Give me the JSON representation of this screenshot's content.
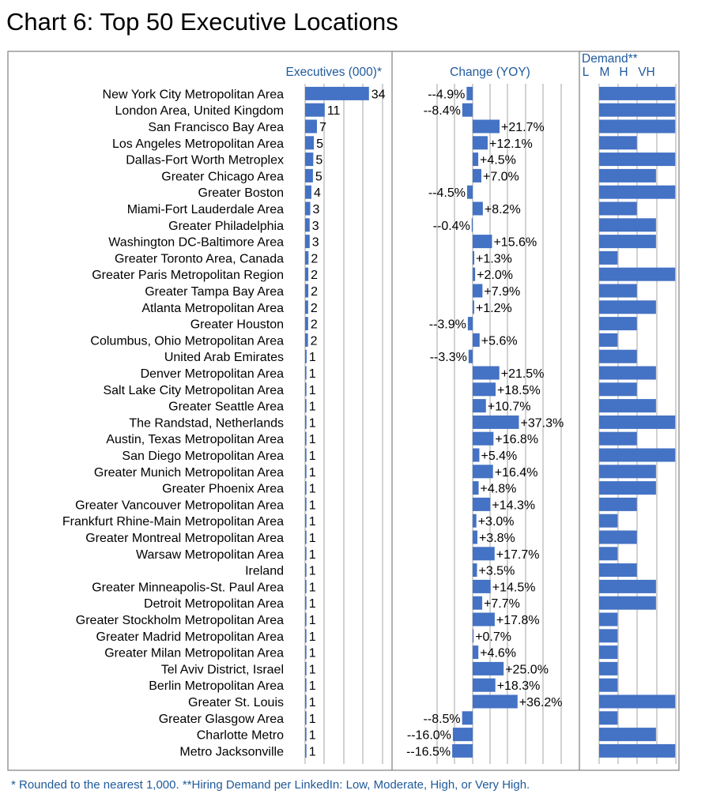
{
  "title": "Chart 6: Top 50 Executive Locations",
  "footnote": "* Rounded to the nearest 1,000.  **Hiring Demand per LinkedIn: Low, Moderate, High, or Very High.",
  "colors": {
    "bar": "#4472c4",
    "header_text": "#1f5a9b",
    "grid": "#a6a6a6",
    "frame": "#7f7f7f"
  },
  "chart_data": {
    "type": "bar",
    "panels": {
      "executives": {
        "header": "Executives (000)*",
        "xlim": [
          0,
          36
        ]
      },
      "change": {
        "header": "Change (YOY)",
        "xlim": [
          -20,
          40
        ]
      },
      "demand": {
        "header": "Demand**",
        "levels": [
          "L",
          "M",
          "H",
          "VH"
        ]
      }
    },
    "categories": [
      "New York City Metropolitan Area",
      "London Area, United Kingdom",
      "San Francisco Bay Area",
      "Los Angeles Metropolitan Area",
      "Dallas-Fort Worth Metroplex",
      "Greater Chicago Area",
      "Greater Boston",
      "Miami-Fort Lauderdale Area",
      "Greater Philadelphia",
      "Washington DC-Baltimore Area",
      "Greater Toronto Area, Canada",
      "Greater Paris Metropolitan Region",
      "Greater Tampa Bay Area",
      "Atlanta Metropolitan Area",
      "Greater Houston",
      "Columbus, Ohio Metropolitan Area",
      "United Arab Emirates",
      "Denver Metropolitan Area",
      "Salt Lake City Metropolitan Area",
      "Greater Seattle Area",
      "The Randstad, Netherlands",
      "Austin, Texas Metropolitan Area",
      "San Diego Metropolitan Area",
      "Greater Munich Metropolitan Area",
      "Greater Phoenix Area",
      "Greater Vancouver Metropolitan Area",
      "Frankfurt Rhine-Main Metropolitan Area",
      "Greater Montreal Metropolitan Area",
      "Warsaw Metropolitan Area",
      "Ireland",
      "Greater Minneapolis-St. Paul Area",
      "Detroit Metropolitan Area",
      "Greater Stockholm Metropolitan Area",
      "Greater Madrid Metropolitan Area",
      "Greater Milan Metropolitan Area",
      "Tel Aviv District, Israel",
      "Berlin Metropolitan Area",
      "Greater St. Louis",
      "Greater Glasgow Area",
      "Charlotte Metro",
      "Metro Jacksonville"
    ],
    "series": [
      {
        "name": "Executives (000)*",
        "values": [
          34,
          11,
          7,
          5,
          5,
          5,
          4,
          3,
          3,
          3,
          2,
          2,
          2,
          2,
          2,
          2,
          1,
          1,
          1,
          1,
          1,
          1,
          1,
          1,
          1,
          1,
          1,
          1,
          1,
          1,
          1,
          1,
          1,
          1,
          1,
          1,
          1,
          1,
          1,
          1,
          1
        ],
        "bar_values": [
          33.5,
          10.3,
          6.2,
          4.6,
          4.3,
          4.1,
          3.3,
          2.7,
          2.4,
          2.4,
          1.8,
          1.7,
          1.7,
          1.6,
          1.6,
          1.5,
          0.8,
          0.7,
          0.7,
          0.7,
          0.7,
          0.7,
          0.7,
          0.7,
          0.7,
          0.7,
          0.7,
          0.7,
          0.7,
          0.7,
          0.7,
          0.7,
          0.7,
          0.7,
          0.7,
          0.7,
          0.7,
          0.7,
          0.7,
          0.7,
          0.7
        ],
        "labels": [
          "34",
          "11",
          "7",
          "5",
          "5",
          "5",
          "4",
          "3",
          "3",
          "3",
          "2",
          "2",
          "2",
          "2",
          "2",
          "2",
          "1",
          "1",
          "1",
          "1",
          "1",
          "1",
          "1",
          "1",
          "1",
          "1",
          "1",
          "1",
          "1",
          "1",
          "1",
          "1",
          "1",
          "1",
          "1",
          "1",
          "1",
          "1",
          "1",
          "1",
          "1"
        ]
      },
      {
        "name": "Change (YOY)",
        "values": [
          -4.9,
          -8.4,
          21.7,
          12.1,
          4.5,
          7.0,
          -4.5,
          8.2,
          -0.4,
          15.6,
          1.3,
          2.0,
          7.9,
          1.2,
          -3.9,
          5.6,
          -3.3,
          21.5,
          18.5,
          10.7,
          37.3,
          16.8,
          5.4,
          16.4,
          4.8,
          14.3,
          3.0,
          3.8,
          17.7,
          3.5,
          14.5,
          7.7,
          17.8,
          0.7,
          4.6,
          25.0,
          18.3,
          36.2,
          -8.5,
          -16.0,
          -16.5
        ],
        "labels": [
          "--4.9%",
          "--8.4%",
          "+21.7%",
          "+12.1%",
          "+4.5%",
          "+7.0%",
          "--4.5%",
          "+8.2%",
          "--0.4%",
          "+15.6%",
          "+1.3%",
          "+2.0%",
          "+7.9%",
          "+1.2%",
          "--3.9%",
          "+5.6%",
          "--3.3%",
          "+21.5%",
          "+18.5%",
          "+10.7%",
          "+37.3%",
          "+16.8%",
          "+5.4%",
          "+16.4%",
          "+4.8%",
          "+14.3%",
          "+3.0%",
          "+3.8%",
          "+17.7%",
          "+3.5%",
          "+14.5%",
          "+7.7%",
          "+17.8%",
          "+0.7%",
          "+4.6%",
          "+25.0%",
          "+18.3%",
          "+36.2%",
          "--8.5%",
          "--16.0%",
          "--16.5%"
        ]
      },
      {
        "name": "Demand**",
        "values": [
          4,
          4,
          4,
          2,
          4,
          3,
          4,
          2,
          3,
          3,
          1,
          4,
          2,
          3,
          2,
          1,
          2,
          3,
          2,
          3,
          4,
          2,
          4,
          3,
          3,
          2,
          1,
          2,
          1,
          2,
          3,
          3,
          1,
          1,
          1,
          1,
          1,
          4,
          1,
          3,
          4
        ]
      }
    ]
  }
}
